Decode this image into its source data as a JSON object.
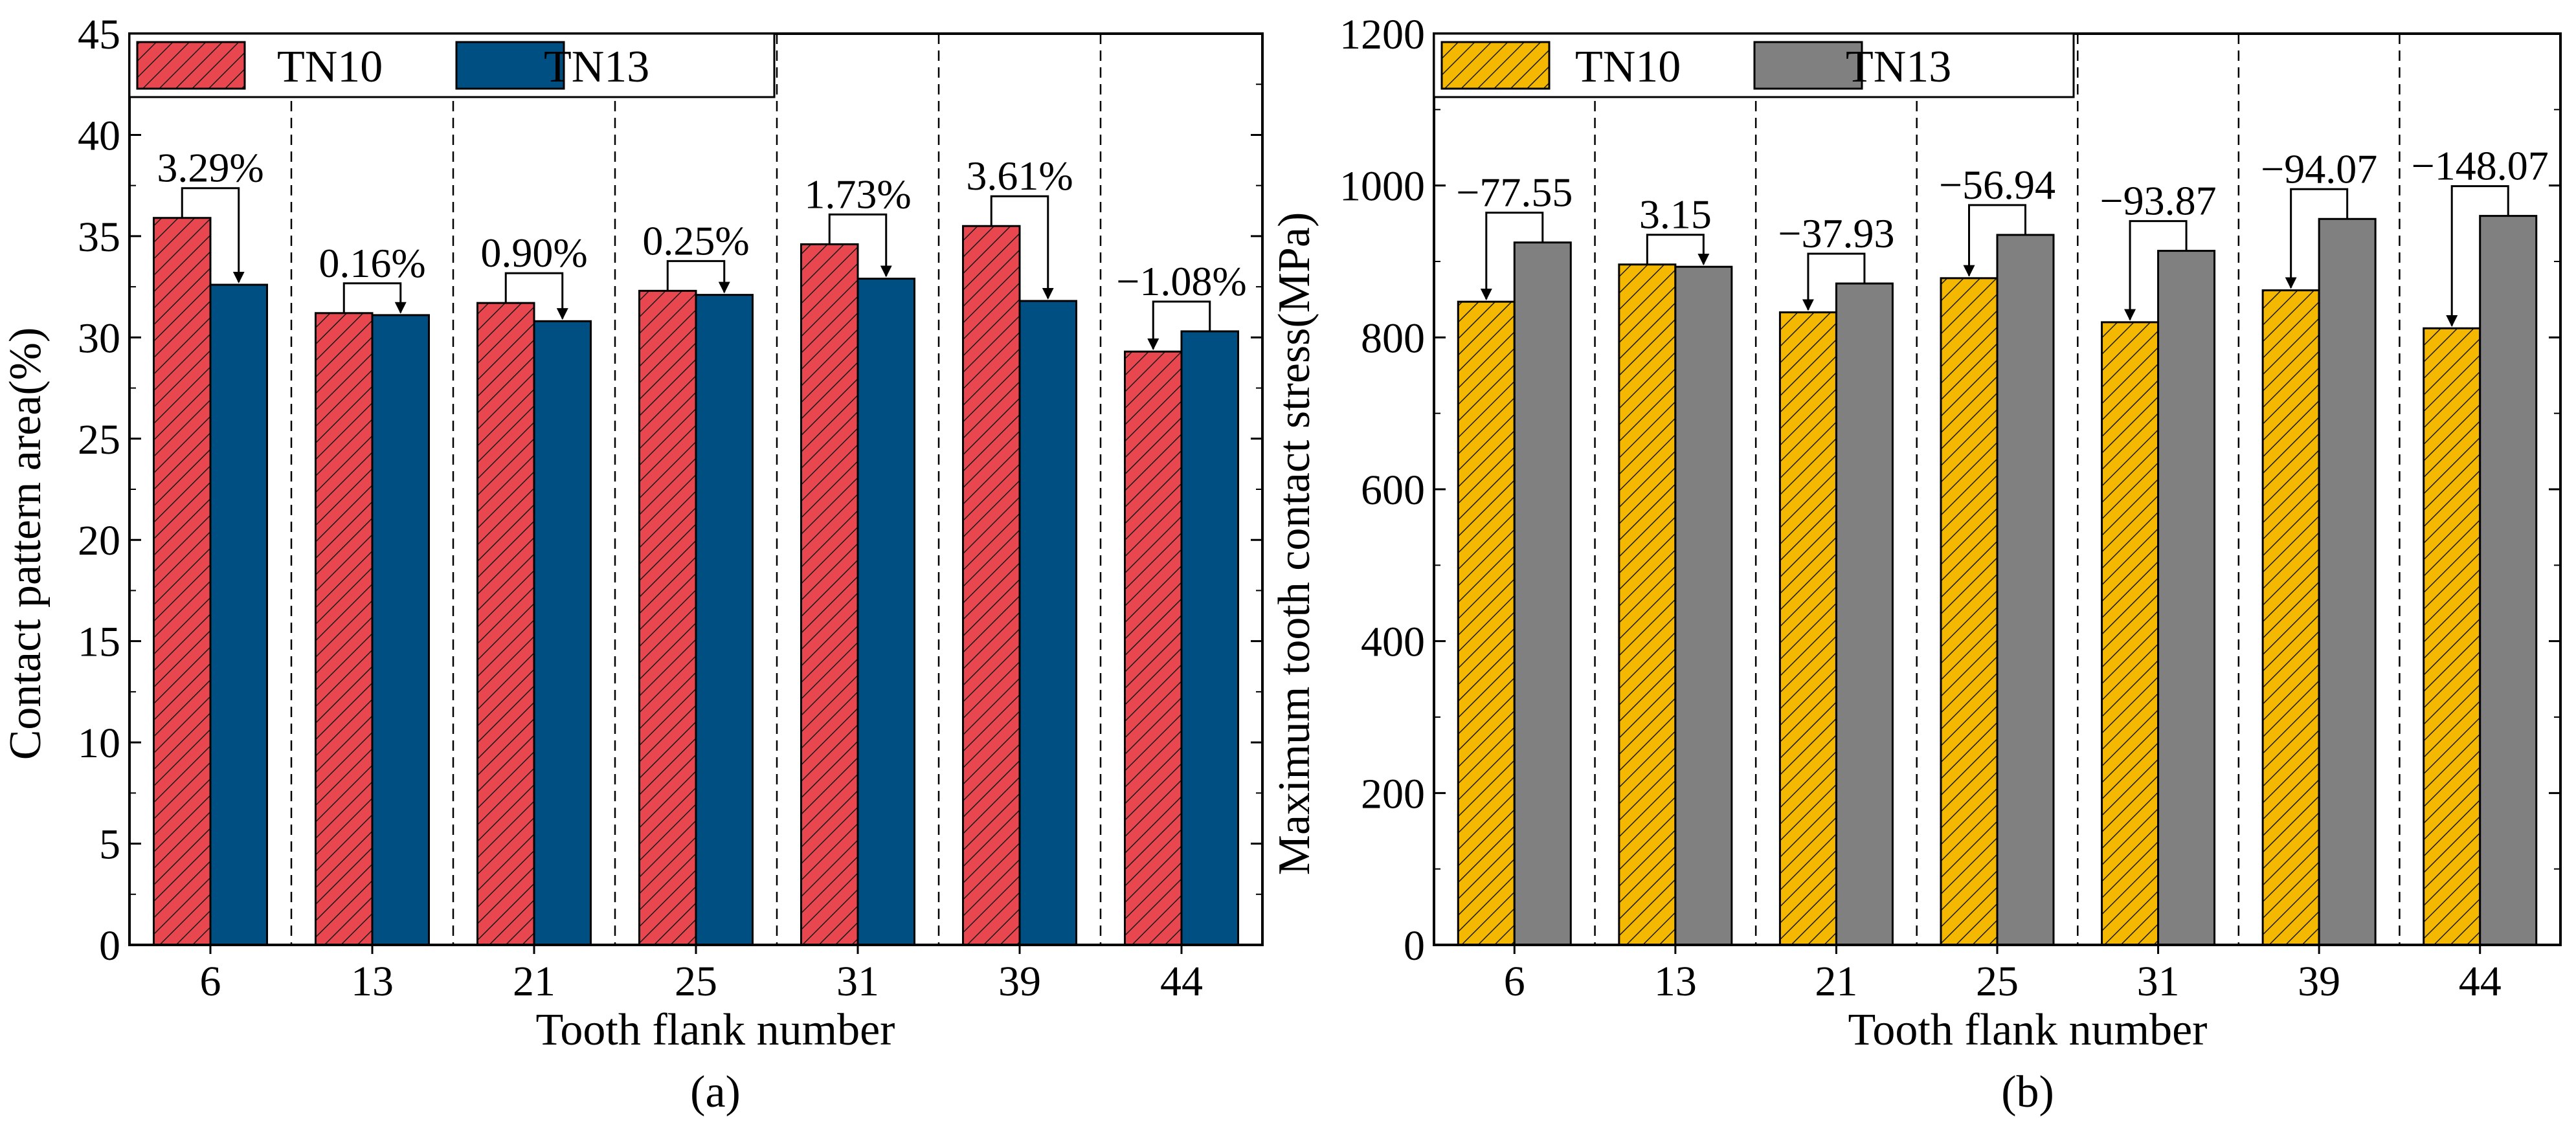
{
  "chart_data": [
    {
      "panel": "a",
      "type": "bar",
      "title": "",
      "xlabel": "Tooth flank number",
      "ylabel": "Contact pattern area(%)",
      "panel_label": "(a)",
      "categories": [
        "6",
        "13",
        "21",
        "25",
        "31",
        "39",
        "44"
      ],
      "series": [
        {
          "name": "TN10",
          "values": [
            35.9,
            31.2,
            31.7,
            32.3,
            34.6,
            35.5,
            29.3
          ],
          "color": "#E8474F",
          "hatch": true
        },
        {
          "name": "TN13",
          "values": [
            32.6,
            31.1,
            30.8,
            32.1,
            32.9,
            31.8,
            30.3
          ],
          "color": "#004F82",
          "hatch": false
        }
      ],
      "annotations": [
        "3.29%",
        "0.16%",
        "0.90%",
        "0.25%",
        "1.73%",
        "3.61%",
        "−1.08%"
      ],
      "ylim": [
        0,
        45
      ],
      "yticks": [
        0,
        5,
        10,
        15,
        20,
        25,
        30,
        35,
        40,
        45
      ],
      "yticklabels": [
        "0",
        "5",
        "10",
        "15",
        "20",
        "25",
        "30",
        "35",
        "40",
        "45"
      ],
      "grid": "vertical dashed separators",
      "legend_position": "top-left"
    },
    {
      "panel": "b",
      "type": "bar",
      "title": "",
      "xlabel": "Tooth flank number",
      "ylabel": "Maximum tooth contact stress(MPa)",
      "panel_label": "(b)",
      "categories": [
        "6",
        "13",
        "21",
        "25",
        "31",
        "39",
        "44"
      ],
      "series": [
        {
          "name": "TN10",
          "values": [
            847,
            896,
            833,
            878,
            820,
            862,
            812
          ],
          "color": "#F5B800",
          "hatch": true
        },
        {
          "name": "TN13",
          "values": [
            925,
            893,
            871,
            935,
            914,
            956,
            960
          ],
          "color": "#808080",
          "hatch": false
        }
      ],
      "annotations": [
        "−77.55",
        "3.15",
        "−37.93",
        "−56.94",
        "−93.87",
        "−94.07",
        "−148.07"
      ],
      "ylim": [
        0,
        1200
      ],
      "yticks": [
        0,
        200,
        400,
        600,
        800,
        1000,
        1200
      ],
      "yticklabels": [
        "0",
        "200",
        "400",
        "600",
        "800",
        "1000",
        "1200"
      ],
      "grid": "vertical dashed separators",
      "legend_position": "top-left"
    }
  ]
}
